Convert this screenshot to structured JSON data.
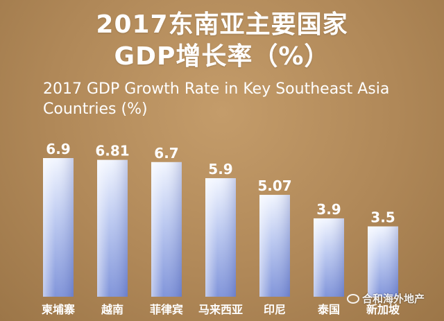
{
  "titles": {
    "zh_line1": "2017东南亚主要国家",
    "zh_line2": "GDP增长率（%）",
    "en_line1": "2017 GDP Growth Rate in Key Southeast Asia",
    "en_line2": "Countries (%)"
  },
  "watermark": "合和海外地产",
  "colors": {
    "bar_top": "#f2f6ff",
    "bar_bottom": "#7a8fd8",
    "label": "#ffffff",
    "background": "#b0895a"
  },
  "chart_data": {
    "type": "bar",
    "title": "2017东南亚主要国家GDP增长率（%）",
    "subtitle": "2017 GDP Growth Rate in Key Southeast Asia Countries (%)",
    "categories": [
      "柬埔寨",
      "越南",
      "菲律宾",
      "马来西亚",
      "印尼",
      "泰国",
      "新加坡"
    ],
    "values": [
      6.9,
      6.81,
      6.7,
      5.9,
      5.07,
      3.9,
      3.5
    ],
    "value_labels": [
      "6.9",
      "6.81",
      "6.7",
      "5.9",
      "5.07",
      "3.9",
      "3.5"
    ],
    "xlabel": "",
    "ylabel": "",
    "ylim": [
      0,
      6.9
    ],
    "grid": false
  }
}
